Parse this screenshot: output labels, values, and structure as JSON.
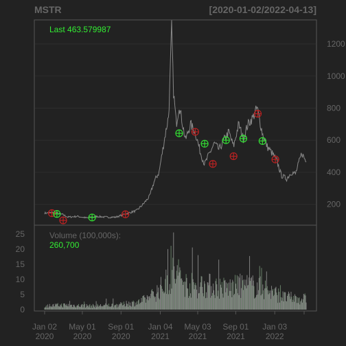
{
  "colors": {
    "background": "#222222",
    "frame": "#555555",
    "grid": "#2d2d2d",
    "axis_text": "#666666",
    "price_line": "#8a8a8a",
    "volume_bar": "#8a8a8a",
    "volume_bar_alt": "#6f8a6f",
    "buy_marker": "#33dd33",
    "sell_marker": "#bb2222",
    "highlight_text": "#33ee33",
    "volume_label_text": "#666666"
  },
  "chart_data": {
    "type": "line",
    "title": "MSTR",
    "date_range": "[2020-01-02/2022-04-13]",
    "price_panel": {
      "last_label": "Last 463.579987",
      "y_ticks": [
        200,
        400,
        600,
        800,
        1000,
        1200
      ],
      "y_tick_labels": [
        "200",
        "400",
        "600",
        "800",
        "1000",
        "1200"
      ],
      "ylim": [
        70,
        1350
      ],
      "series": [
        {
          "name": "",
          "x": [
            "2020-01-02",
            "2020-02-01",
            "2020-03-01",
            "2020-03-16",
            "2020-04-15",
            "2020-05-15",
            "2020-06-15",
            "2020-07-15",
            "2020-08-15",
            "2020-09-15",
            "2020-10-01",
            "2020-10-20",
            "2020-11-10",
            "2020-12-01",
            "2020-12-15",
            "2020-12-31",
            "2021-01-15",
            "2021-01-31",
            "2021-02-09",
            "2021-02-15",
            "2021-02-24",
            "2021-03-05",
            "2021-03-25",
            "2021-04-10",
            "2021-04-25",
            "2021-05-12",
            "2021-05-25",
            "2021-06-10",
            "2021-06-25",
            "2021-07-10",
            "2021-07-25",
            "2021-08-10",
            "2021-08-25",
            "2021-09-10",
            "2021-09-25",
            "2021-10-10",
            "2021-10-25",
            "2021-11-08",
            "2021-11-25",
            "2021-12-10",
            "2021-12-25",
            "2022-01-10",
            "2022-01-24",
            "2022-02-10",
            "2022-02-25",
            "2022-03-10",
            "2022-03-30",
            "2022-04-13"
          ],
          "y": [
            145,
            150,
            135,
            120,
            125,
            115,
            125,
            120,
            120,
            140,
            150,
            160,
            200,
            250,
            340,
            400,
            580,
            760,
            1300,
            900,
            700,
            820,
            600,
            700,
            650,
            520,
            450,
            520,
            580,
            540,
            600,
            650,
            560,
            700,
            610,
            700,
            740,
            800,
            640,
            560,
            520,
            470,
            380,
            360,
            400,
            390,
            520,
            463.58
          ]
        }
      ],
      "buy_signals": [
        {
          "date": "2020-02-10",
          "price": 140
        },
        {
          "date": "2020-06-01",
          "price": 118
        },
        {
          "date": "2021-03-05",
          "price": 643
        },
        {
          "date": "2021-05-25",
          "price": 578
        },
        {
          "date": "2021-08-01",
          "price": 600
        },
        {
          "date": "2021-09-25",
          "price": 610
        },
        {
          "date": "2021-11-25",
          "price": 595
        }
      ],
      "sell_signals": [
        {
          "date": "2020-01-25",
          "price": 145
        },
        {
          "date": "2020-03-01",
          "price": 100
        },
        {
          "date": "2020-09-15",
          "price": 138
        },
        {
          "date": "2021-04-25",
          "price": 652
        },
        {
          "date": "2021-06-20",
          "price": 452
        },
        {
          "date": "2021-08-25",
          "price": 500
        },
        {
          "date": "2021-11-10",
          "price": 765
        },
        {
          "date": "2022-01-05",
          "price": 480
        }
      ]
    },
    "volume_panel": {
      "label": "Volume (100,000s):",
      "last_value": "260,700",
      "y_ticks": [
        0,
        5,
        10,
        15,
        20,
        25
      ],
      "y_tick_labels": [
        "0",
        "5",
        "10",
        "15",
        "20",
        "25"
      ],
      "ylim": [
        0,
        27
      ],
      "profile": {
        "x": [
          "2020-01-02",
          "2020-03-01",
          "2020-06-01",
          "2020-09-01",
          "2020-11-01",
          "2020-12-15",
          "2021-01-15",
          "2021-02-15",
          "2021-04-01",
          "2021-06-01",
          "2021-08-01",
          "2021-10-01",
          "2021-12-01",
          "2022-02-01",
          "2022-04-13"
        ],
        "y": [
          1.2,
          1.5,
          1.2,
          1.6,
          2.5,
          5,
          8,
          12,
          8,
          8,
          7,
          8,
          7,
          4,
          3.5
        ]
      }
    },
    "x_ticks": [
      "2020-01-02",
      "2020-05-01",
      "2020-09-01",
      "2021-01-04",
      "2021-05-03",
      "2021-09-01",
      "2022-01-03"
    ],
    "x_tick_labels": [
      [
        "Jan 02",
        "2020"
      ],
      [
        "May 01",
        "2020"
      ],
      [
        "Sep 01",
        "2020"
      ],
      [
        "Jan 04",
        "2021"
      ],
      [
        "May 03",
        "2021"
      ],
      [
        "Sep 01",
        "2021"
      ],
      [
        "Jan 03",
        "2022"
      ]
    ],
    "xlim": [
      "2020-01-02",
      "2022-04-13"
    ]
  }
}
